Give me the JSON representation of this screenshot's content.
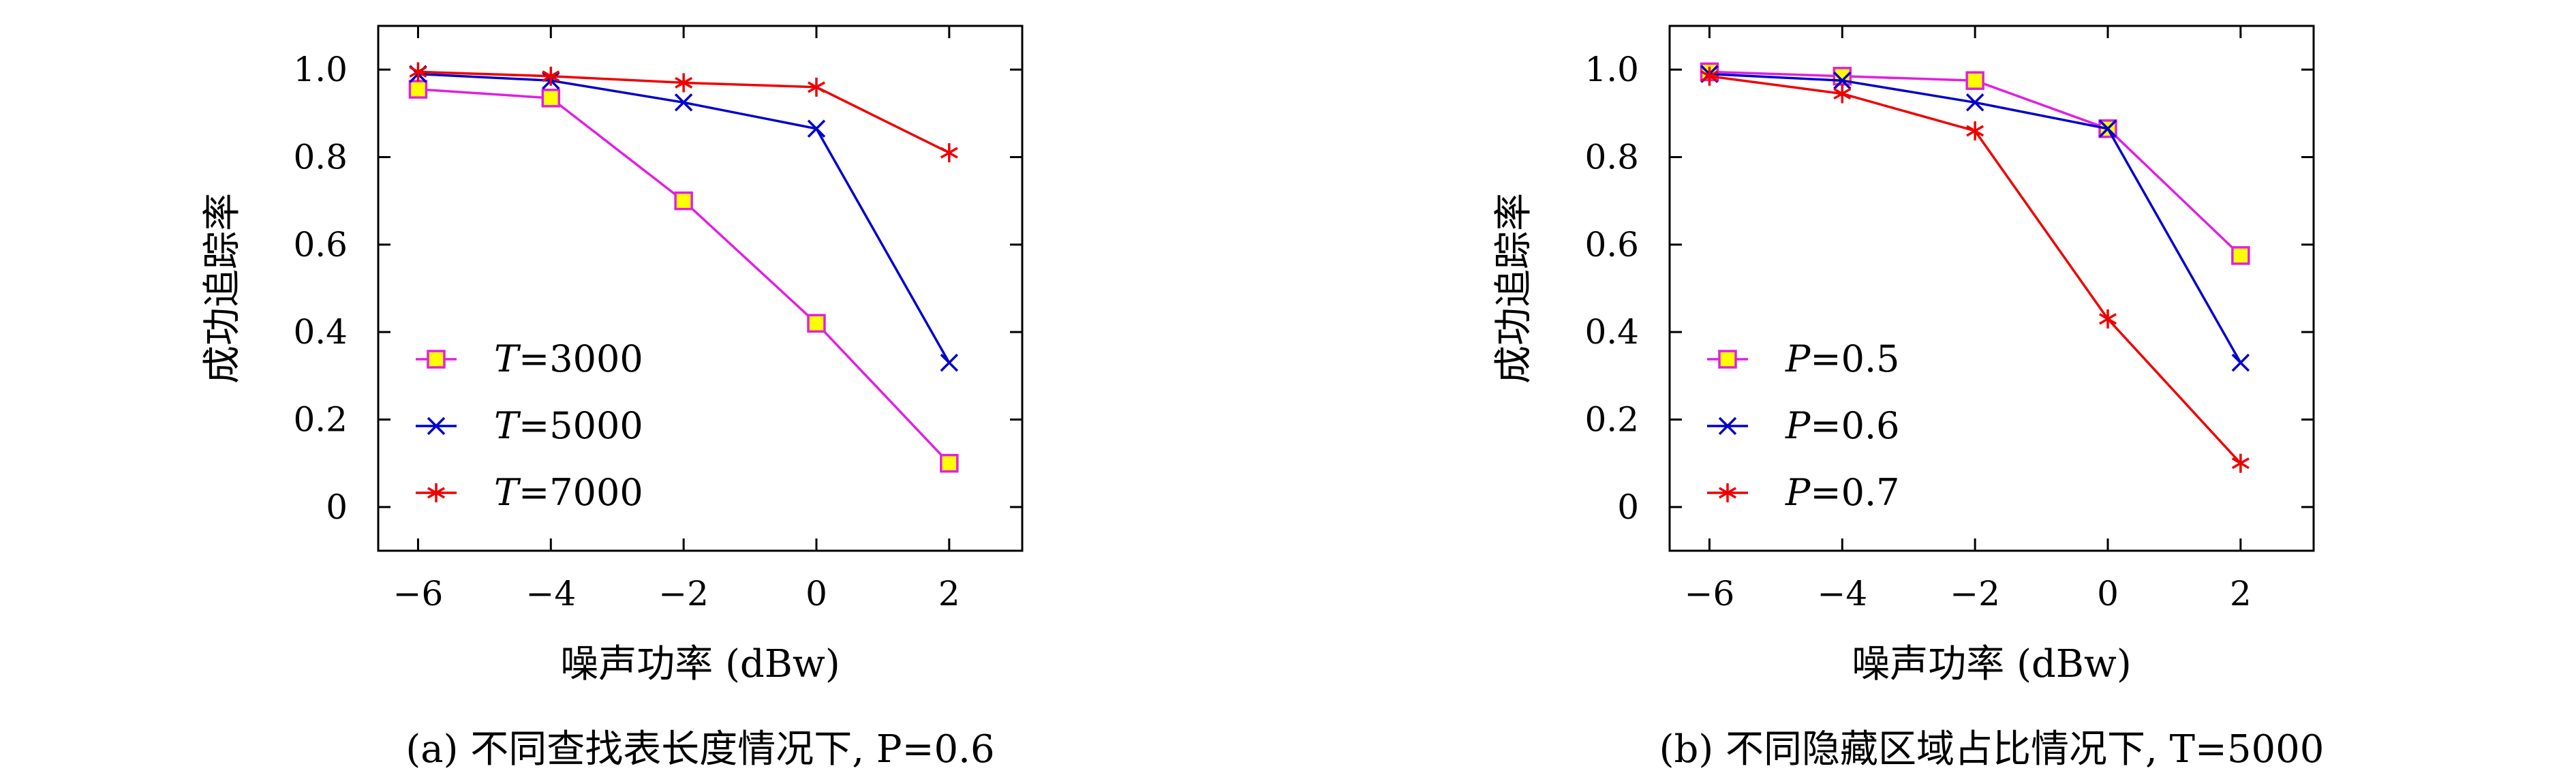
{
  "chart_data": [
    {
      "type": "line",
      "caption": "(a) 不同查找表长度情况下, P=0.6",
      "xlabel": "噪声功率 (dBw)",
      "ylabel": "成功追踪率",
      "x": [
        -6,
        -4,
        -2,
        0,
        2
      ],
      "xticks": [
        "−6",
        "−4",
        "−2",
        "0",
        "2"
      ],
      "yticks": [
        "0",
        "0.2",
        "0.4",
        "0.6",
        "0.8",
        "1.0"
      ],
      "xlim": [
        -6.6,
        3.1
      ],
      "ylim": [
        -0.1,
        1.1
      ],
      "legend_position": "bottom-left",
      "grid": false,
      "series": [
        {
          "name": "T=3000",
          "name_var": "T",
          "name_val": "=3000",
          "marker": "square",
          "color": "#e020e0",
          "fill": "#ffff00",
          "values": [
            0.955,
            0.935,
            0.7,
            0.42,
            0.1
          ]
        },
        {
          "name": "T=5000",
          "name_var": "T",
          "name_val": "=5000",
          "marker": "x",
          "color": "#0000cc",
          "values": [
            0.99,
            0.975,
            0.925,
            0.865,
            0.33
          ]
        },
        {
          "name": "T=7000",
          "name_var": "T",
          "name_val": "=7000",
          "marker": "star",
          "color": "#ee0000",
          "values": [
            0.995,
            0.985,
            0.97,
            0.96,
            0.81
          ]
        }
      ]
    },
    {
      "type": "line",
      "caption": "(b) 不同隐藏区域占比情况下, T=5000",
      "xlabel": "噪声功率 (dBw)",
      "ylabel": "成功追踪率",
      "x": [
        -6,
        -4,
        -2,
        0,
        2
      ],
      "xticks": [
        "−6",
        "−4",
        "−2",
        "0",
        "2"
      ],
      "yticks": [
        "0",
        "0.2",
        "0.4",
        "0.6",
        "0.8",
        "1.0"
      ],
      "xlim": [
        -6.6,
        3.1
      ],
      "ylim": [
        -0.1,
        1.1
      ],
      "legend_position": "bottom-left",
      "grid": false,
      "series": [
        {
          "name": "P=0.5",
          "name_var": "P",
          "name_val": "=0.5",
          "marker": "square",
          "color": "#e020e0",
          "fill": "#ffff00",
          "values": [
            0.995,
            0.985,
            0.975,
            0.865,
            0.575
          ]
        },
        {
          "name": "P=0.6",
          "name_var": "P",
          "name_val": "=0.6",
          "marker": "x",
          "color": "#0000cc",
          "values": [
            0.99,
            0.975,
            0.925,
            0.865,
            0.33
          ]
        },
        {
          "name": "P=0.7",
          "name_var": "P",
          "name_val": "=0.7",
          "marker": "star",
          "color": "#ee0000",
          "values": [
            0.985,
            0.945,
            0.86,
            0.43,
            0.1
          ]
        }
      ]
    }
  ]
}
